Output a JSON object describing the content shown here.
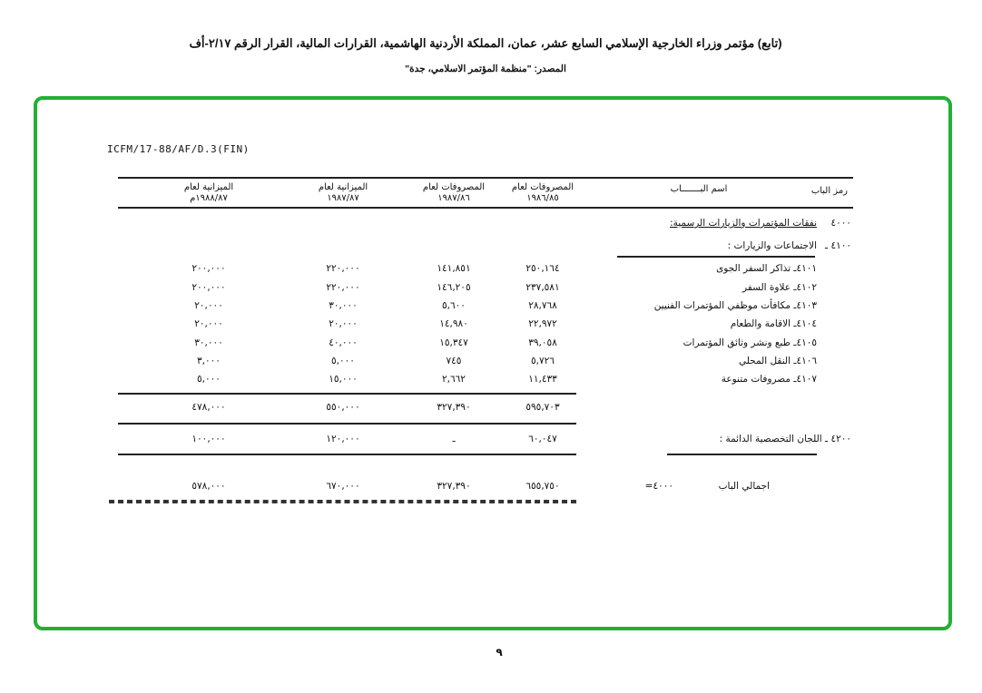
{
  "header": {
    "title": "(تابع) مؤتمر وزراء الخارجية الإسلامي السابع عشر، عمان، المملكة الأردنية الهاشمية، القرارات المالية، القرار الرقم ٢/١٧-أف",
    "source": "المصدر: \"منظمة المؤتمر الاسلامي، جدة\""
  },
  "frame_color": "#22b033",
  "document": {
    "reference": "ICFM/17-88/AF/D.3(FIN)",
    "columns": {
      "code": "رمز الباب",
      "name": "اسم البـــــــاب",
      "exp_8586": [
        "المصروفات لعام",
        "١٩٨٦/٨٥"
      ],
      "exp_8687": [
        "المصروفات لعام",
        "١٩٨٧/٨٦"
      ],
      "bud_8687": [
        "الميزانية لعام",
        "١٩٨٧/٨٧"
      ],
      "bud_8788": [
        "الميزانية لعام",
        "١٩٨٨/٨٧م"
      ]
    },
    "section": {
      "code": "٤٠٠٠",
      "name": "نفقات المؤتمرات والزيارات الرسمية:"
    },
    "subsection": {
      "code": "٤١٠٠ ـ",
      "name": "الاجتماعات والزيارات :"
    },
    "rows": [
      {
        "name": "٤١٠١ـ تذاكر السفر الجوى",
        "v": [
          "٢٥٠,١٦٤",
          "١٤١,٨٥١",
          "٢٢٠,٠٠٠",
          "٢٠٠,٠٠٠"
        ]
      },
      {
        "name": "٤١٠٢ـ علاوة السفر",
        "v": [
          "٢٣٧,٥٨١",
          "١٤٦,٢٠٥",
          "٢٢٠,٠٠٠",
          "٢٠٠,٠٠٠"
        ]
      },
      {
        "name": "٤١٠٣ـ مكافأت موظفي المؤتمرات الفنيين",
        "v": [
          "٢٨,٧٦٨",
          "٥,٦٠٠",
          "٣٠,٠٠٠",
          "٢٠,٠٠٠"
        ]
      },
      {
        "name": "٤١٠٤ـ الاقامة والطعام",
        "v": [
          "٢٢,٩٧٢",
          "١٤,٩٨٠",
          "٢٠,٠٠٠",
          "٢٠,٠٠٠"
        ]
      },
      {
        "name": "٤١٠٥ـ طبع ونشر وثائق المؤتمرات",
        "v": [
          "٣٩,٠٥٨",
          "١٥,٣٤٧",
          "٤٠,٠٠٠",
          "٣٠,٠٠٠"
        ]
      },
      {
        "name": "٤١٠٦ـ النقل المحلي",
        "v": [
          "٥,٧٢٦",
          "٧٤٥",
          "٥,٠٠٠",
          "٣,٠٠٠"
        ]
      },
      {
        "name": "٤١٠٧ـ مصروفات متنوعة",
        "v": [
          "١١,٤٣٣",
          "٢,٦٦٢",
          "١٥,٠٠٠",
          "٥,٠٠٠"
        ]
      }
    ],
    "subtotal": {
      "v": [
        "٥٩٥,٧٠٣",
        "٣٢٧,٣٩٠",
        "٥٥٠,٠٠٠",
        "٤٧٨,٠٠٠"
      ]
    },
    "committees": {
      "name": "٤٢٠٠ ـ اللجان التخصصية الدائمة :",
      "v": [
        "٦٠,٠٤٧",
        "ـ",
        "١٢٠,٠٠٠",
        "١٠٠,٠٠٠"
      ]
    },
    "total": {
      "name": "اجمالي الباب",
      "code": "٤٠٠٠=",
      "v": [
        "٦٥٥,٧٥٠",
        "٣٢٧,٣٩٠",
        "٦٧٠,٠٠٠",
        "٥٧٨,٠٠٠"
      ]
    }
  },
  "page_number": "٩"
}
